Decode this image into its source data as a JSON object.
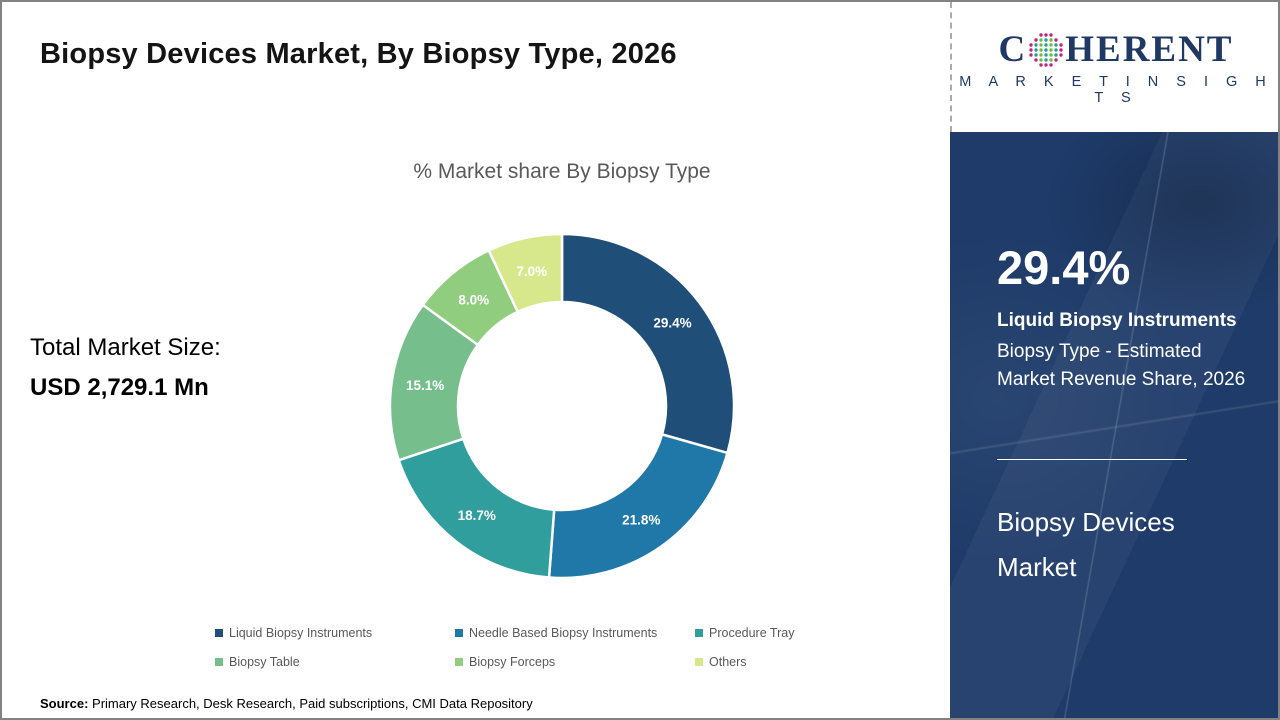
{
  "page": {
    "title": "Biopsy Devices Market, By Biopsy Type, 2026",
    "total_market_label": "Total Market Size:",
    "total_market_value": "USD 2,729.1 Mn",
    "source_label": "Source:",
    "source_text": " Primary Research, Desk Research, Paid subscriptions, CMI Data Repository"
  },
  "logo": {
    "word_initial": "C",
    "word_rest": "HERENT",
    "subtitle": "M A R K E T   I N S I G H T S",
    "globe_colors": {
      "teal": "#2A9D93",
      "green": "#6CBE45",
      "magenta": "#C0257F"
    }
  },
  "sidebar": {
    "stat_value": "29.4%",
    "stat_name": "Liquid Biopsy Instruments",
    "stat_desc": "Biopsy Type - Estimated Market Revenue Share, 2026",
    "market_name": "Biopsy Devices Market",
    "panel_color": "#1E3B69"
  },
  "chart_data": {
    "type": "pie",
    "donut": true,
    "title": "% Market share By Biopsy Type",
    "categories": [
      "Liquid Biopsy Instruments",
      "Needle Based Biopsy Instruments",
      "Procedure Tray",
      "Biopsy Table",
      "Biopsy Forceps",
      "Others"
    ],
    "values": [
      29.4,
      21.8,
      18.7,
      15.1,
      8.0,
      7.0
    ],
    "labels": [
      "29.4%",
      "21.8%",
      "18.7%",
      "15.1%",
      "8.0%",
      "7.0%"
    ],
    "colors": [
      "#1F4E79",
      "#1F78A8",
      "#2F9E9D",
      "#76BF8D",
      "#90CD7E",
      "#D6E88B"
    ],
    "legend_position": "bottom",
    "start_angle_deg": 0,
    "outer_radius": 172,
    "inner_radius": 104
  }
}
